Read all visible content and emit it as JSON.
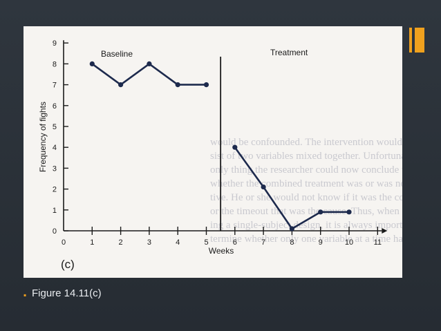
{
  "slide": {
    "caption_bullet": "▪",
    "caption": "Figure 14.11(c)"
  },
  "chart_data": {
    "type": "line",
    "panel_label": "(c)",
    "xlabel": "Weeks",
    "ylabel": "Frequency of fights",
    "xlim": [
      0,
      11
    ],
    "ylim": [
      0,
      9
    ],
    "x_ticks": [
      0,
      1,
      2,
      3,
      4,
      5,
      6,
      7,
      8,
      9,
      10,
      11
    ],
    "y_ticks": [
      0,
      1,
      2,
      3,
      4,
      5,
      6,
      7,
      8,
      9
    ],
    "phase_change_x": 5.5,
    "phase_labels": [
      "Baseline",
      "Treatment"
    ],
    "series": [
      {
        "x": [
          1,
          2,
          3,
          4,
          5
        ],
        "y": [
          8,
          7,
          8,
          7,
          7
        ]
      },
      {
        "x": [
          6,
          7,
          8,
          9,
          10
        ],
        "y": [
          4,
          2.1,
          0.1,
          0.9,
          0.9
        ]
      }
    ],
    "grid": false
  },
  "bleed_through": [
    "would be confounded. The intervention would now con-",
    "sist of two variables mixed together. Unfortunately, the",
    "only thing the researcher could now conclude would be",
    "whether the combined treatment was or was not effec-",
    "tive. He or she would not know if it was the counseling",
    "or the timeout that was the cause. Thus, when analyz-",
    "ing a single-subject design, it is always important to de-",
    "termine whether only one variable at a time has been"
  ],
  "colors": {
    "accent": "#f0a11e",
    "ink": "#1d2a4d",
    "background": "#2b323a",
    "panel": "#f6f4f1"
  }
}
